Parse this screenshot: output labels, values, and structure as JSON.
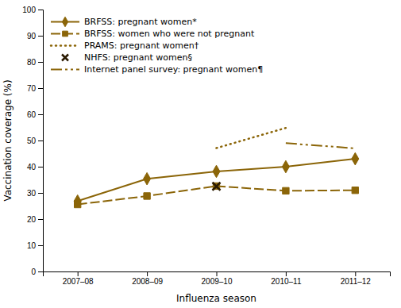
{
  "chart_data": {
    "type": "line",
    "xlabel": "Influenza season",
    "ylabel": "Vaccination coverage (%)",
    "categories": [
      "2007–08",
      "2008–09",
      "2009–10",
      "2010–11",
      "2011–12"
    ],
    "series": [
      {
        "name": "BRFSS: pregnant women*",
        "color": "#8B6508",
        "marker": "diamond",
        "line_style": "solid",
        "values": [
          26.9,
          35.4,
          38.2,
          40.0,
          43.0
        ]
      },
      {
        "name": "BRFSS: women who were not pregnant",
        "color": "#8B6508",
        "marker": "square",
        "line_style": "dashed",
        "values": [
          25.6,
          28.8,
          32.6,
          30.8,
          31.0
        ]
      },
      {
        "name": "PRAMS: pregnant women†",
        "color": "#8B6508",
        "marker": "none",
        "line_style": "dotted",
        "values": [
          null,
          null,
          47.1,
          54.8,
          null
        ]
      },
      {
        "name": "NHFS: pregnant women§",
        "color": "#2a1a00",
        "marker": "x",
        "line_style": "none",
        "values": [
          null,
          null,
          32.5,
          null,
          null
        ]
      },
      {
        "name": "Internet panel survey: pregnant women¶",
        "color": "#8B6508",
        "marker": "none",
        "line_style": "dashdotdot",
        "values": [
          null,
          null,
          null,
          49.0,
          47.0
        ]
      }
    ],
    "ylim": [
      0,
      100
    ],
    "yticks": [
      0,
      10,
      20,
      30,
      40,
      50,
      60,
      70,
      80,
      90,
      100
    ],
    "grid": false,
    "legend": "upper left"
  }
}
